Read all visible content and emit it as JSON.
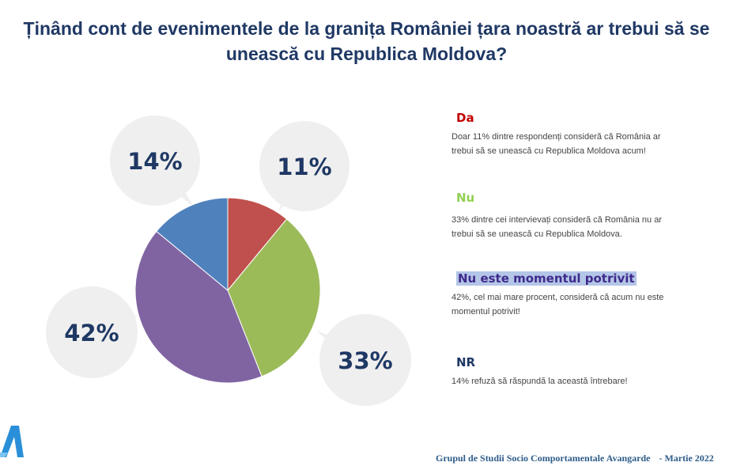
{
  "title": {
    "line1": "Ținând cont de evenimentele de la granița României țara noastră ar trebui să se",
    "line2": "unească cu Republica Moldova?"
  },
  "chart_data": {
    "type": "pie",
    "title": "Ținând cont de evenimentele de la granița României țara noastră ar trebui să se unească cu Republica Moldova?",
    "slices": [
      {
        "label": "Da",
        "value": 11,
        "display": "11%",
        "color": "#c0504d"
      },
      {
        "label": "Nu",
        "value": 33,
        "display": "33%",
        "color": "#9bbb59"
      },
      {
        "label": "Nu este momentul potrivit",
        "value": 42,
        "display": "42%",
        "color": "#8064a2"
      },
      {
        "label": "NR",
        "value": 14,
        "display": "14%",
        "color": "#4f81bd"
      }
    ],
    "start_angle_deg": 0,
    "direction": "clockwise"
  },
  "legend": {
    "da": {
      "label": "Da",
      "color": "#c00000",
      "text1": "Doar 11% dintre respondenți consideră că România ar",
      "text2": "trebui să se unească cu Republica Moldova acum!"
    },
    "nu": {
      "label": "Nu",
      "color": "#92d050",
      "text1": "33% dintre cei intervievați consideră că România nu ar",
      "text2": "trebui să se unească cu Republica Moldova."
    },
    "nemp": {
      "label": "Nu este momentul potrivit",
      "color": "#3f2a8c",
      "text1": "42%, cel mai mare procent, consideră că acum nu este",
      "text2": "momentul potrivit!"
    },
    "nr": {
      "label": "NR",
      "color": "#1f3864",
      "text1": "14% refuză să răspundă la această întrebare!"
    }
  },
  "footer": {
    "org": "Grupul de Studii Socio Comportamentale Avangarde",
    "date": "- Martie 2022"
  },
  "colors": {
    "bubble": "#efefef",
    "bubble_text": "#1f3864",
    "title": "#1f3864",
    "logo": "#2a8fd8"
  },
  "icons": {
    "logo": "avangarde-logo-icon"
  }
}
